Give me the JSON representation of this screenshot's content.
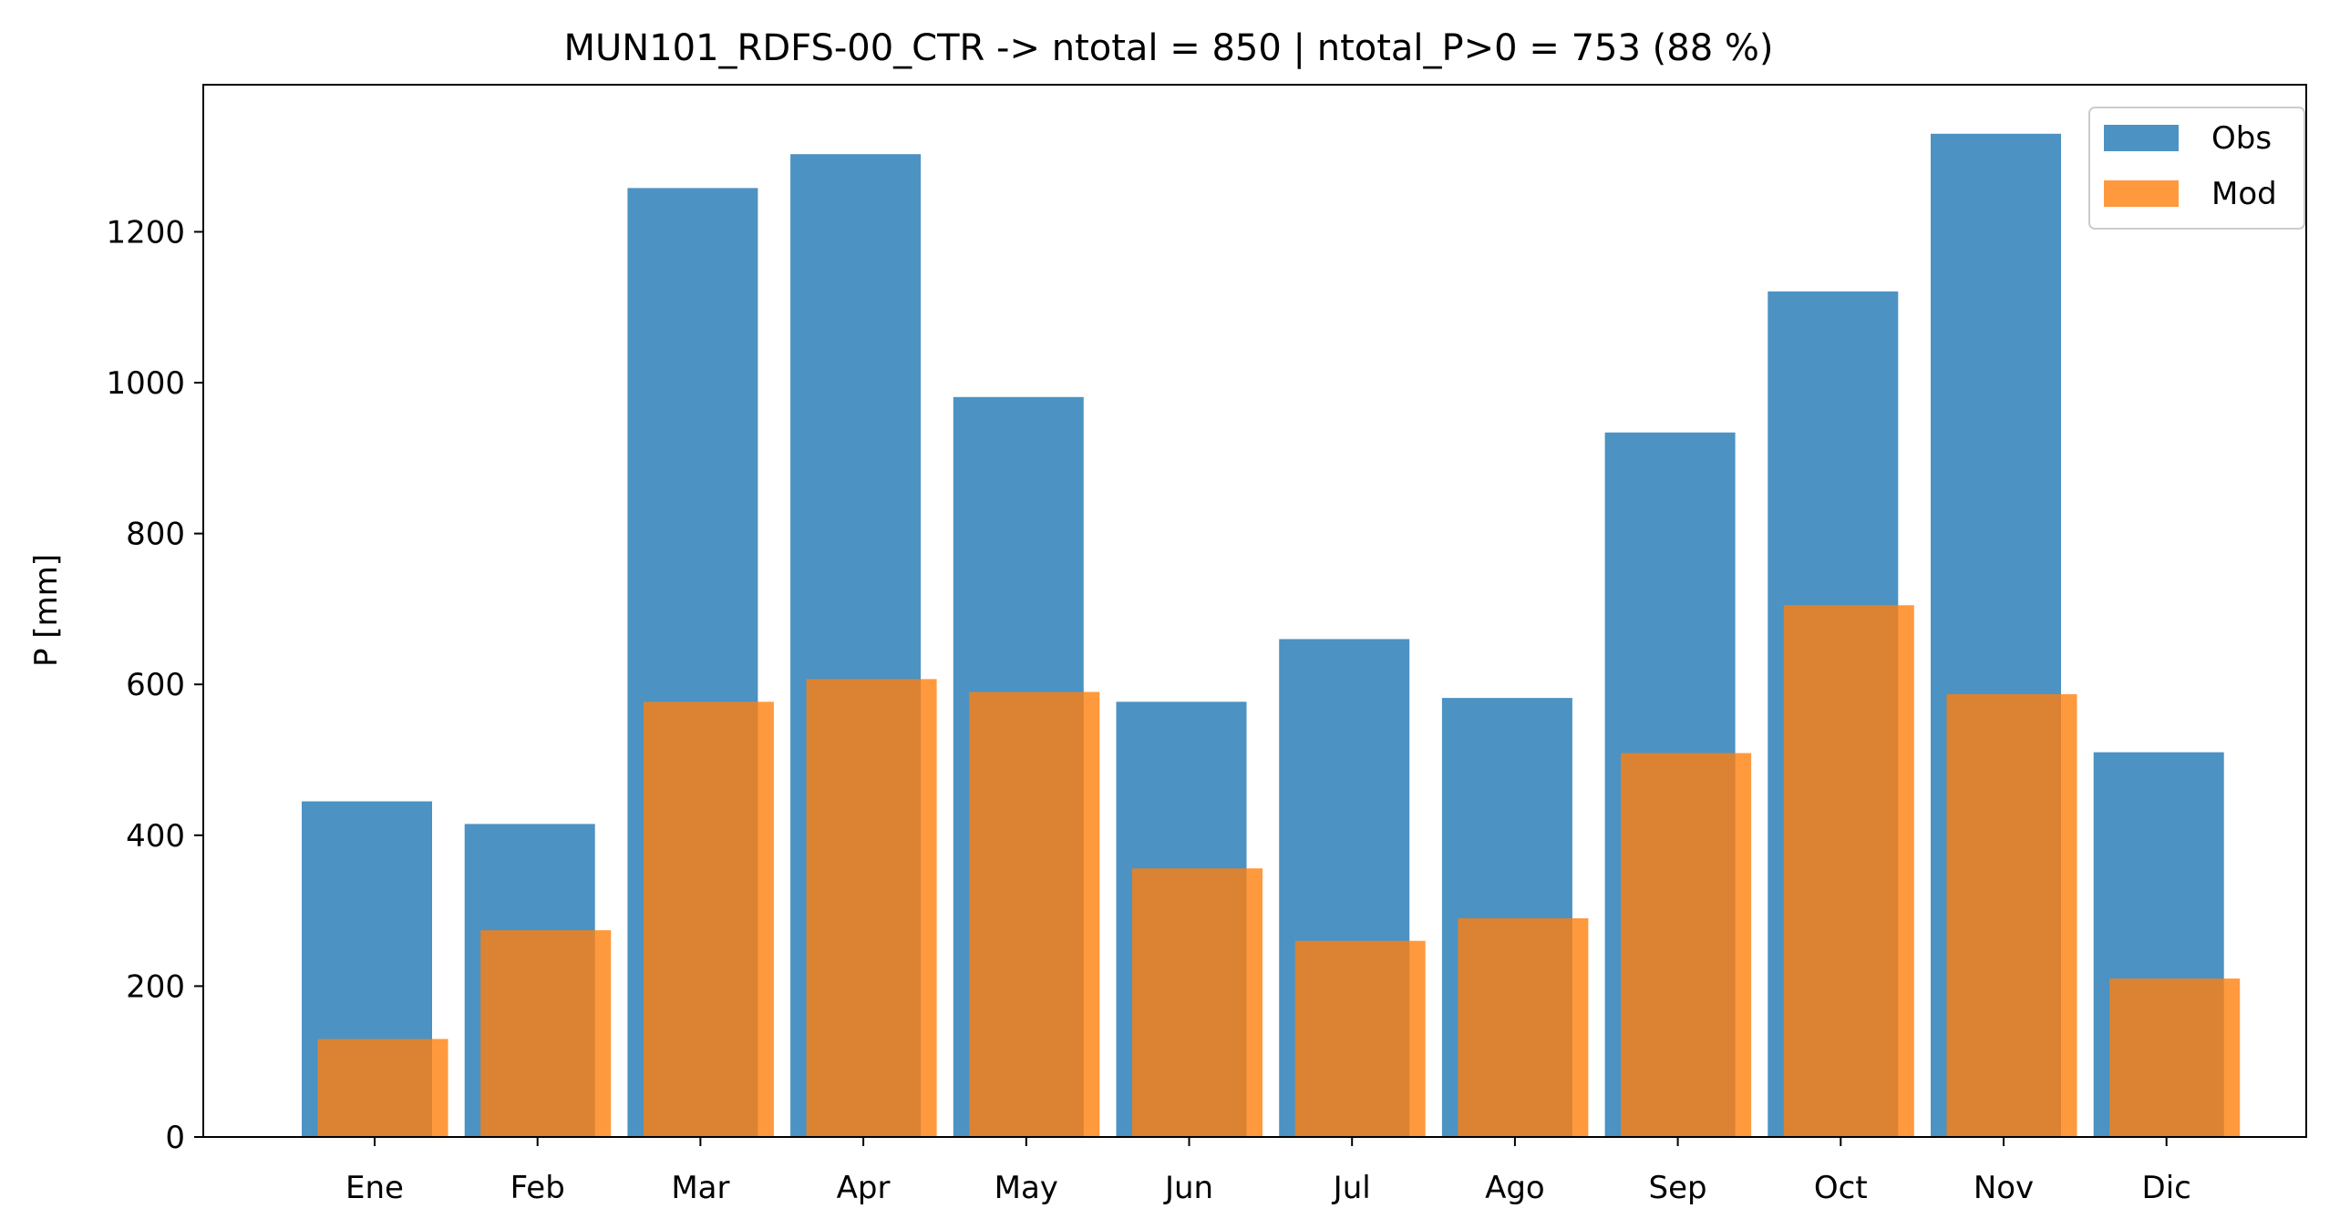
{
  "chart_data": {
    "type": "bar",
    "title": "MUN101_RDFS-00_CTR -> ntotal = 850 | ntotal_P>0 = 753 (88 %)",
    "xlabel": "",
    "ylabel": "P [mm]",
    "categories": [
      "Ene",
      "Feb",
      "Mar",
      "Apr",
      "May",
      "Jun",
      "Jul",
      "Ago",
      "Sep",
      "Oct",
      "Nov",
      "Dic"
    ],
    "series": [
      {
        "name": "Obs",
        "color": "#1f77b4",
        "values": [
          445,
          415,
          1258,
          1303,
          981,
          577,
          660,
          582,
          934,
          1121,
          1330,
          510
        ]
      },
      {
        "name": "Mod",
        "color": "#ff7f0e",
        "values": [
          130,
          274,
          577,
          607,
          590,
          356,
          260,
          290,
          509,
          705,
          587,
          210
        ]
      }
    ],
    "ylim": [
      0,
      1395
    ],
    "yticks": [
      0,
      200,
      400,
      600,
      800,
      1000,
      1200
    ],
    "grid": false,
    "legend_position": "top-right"
  }
}
